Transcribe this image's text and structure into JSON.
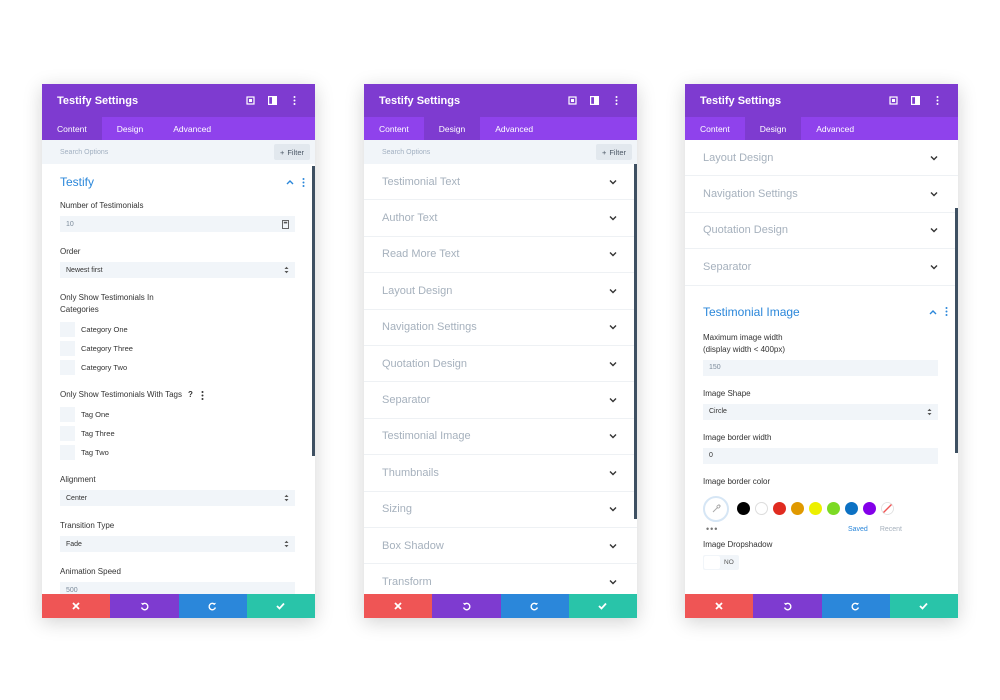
{
  "panel1": {
    "title": "Testify Settings",
    "tabs": [
      "Content",
      "Design",
      "Advanced"
    ],
    "search_placeholder": "Search Options",
    "filter_label": "Filter",
    "group_title": "Testify",
    "fields": {
      "num_label": "Number of Testimonials",
      "num_value": "10",
      "order_label": "Order",
      "order_value": "Newest first",
      "categories_label": "Only Show Testimonials In Categories",
      "categories": [
        "Category One",
        "Category Three",
        "Category Two"
      ],
      "tags_label": "Only Show Testimonials With Tags",
      "tags_help": "?",
      "tags": [
        "Tag One",
        "Tag Three",
        "Tag Two"
      ],
      "alignment_label": "Alignment",
      "alignment_value": "Center",
      "transition_label": "Transition Type",
      "transition_value": "Fade",
      "speed_label": "Animation Speed",
      "speed_value": "500"
    }
  },
  "panel2": {
    "title": "Testify Settings",
    "tabs": [
      "Content",
      "Design",
      "Advanced"
    ],
    "search_placeholder": "Search Options",
    "filter_label": "Filter",
    "sections": [
      "Testimonial Text",
      "Author Text",
      "Read More Text",
      "Layout Design",
      "Navigation Settings",
      "Quotation Design",
      "Separator",
      "Testimonial Image",
      "Thumbnails",
      "Sizing",
      "Box Shadow",
      "Transform"
    ]
  },
  "panel3": {
    "title": "Testify Settings",
    "tabs": [
      "Content",
      "Design",
      "Advanced"
    ],
    "sections": [
      "Layout Design",
      "Navigation Settings",
      "Quotation Design",
      "Separator"
    ],
    "group_title": "Testimonial Image",
    "fields": {
      "max_width_label": "Maximum image width (display width < 400px)",
      "max_width_value": "150",
      "shape_label": "Image Shape",
      "shape_value": "Circle",
      "border_width_label": "Image border width",
      "border_width_value": "0",
      "border_color_label": "Image border color",
      "saved_label": "Saved",
      "recent_label": "Recent",
      "dropshadow_label": "Image Dropshadow",
      "dropshadow_value": "NO"
    },
    "swatch_colors": [
      "#000000",
      "#ffffff",
      "#e02b20",
      "#e09900",
      "#edf000",
      "#7cda24",
      "#0c71c3",
      "#8300e9"
    ]
  },
  "colors": {
    "header": "#7e3bd0",
    "tabs": "#8f42ec",
    "accent": "#2b87da",
    "cancel": "#ef5555",
    "undo": "#7e3bd0",
    "redo": "#2b87da",
    "save": "#29c4a9"
  }
}
